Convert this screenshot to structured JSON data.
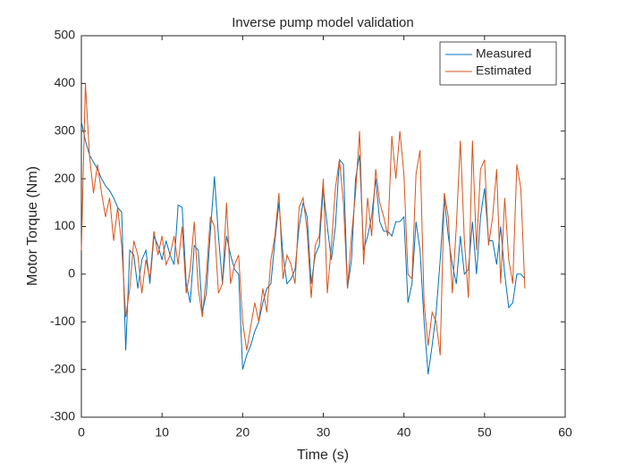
{
  "chart_data": {
    "type": "line",
    "title": "Inverse pump model validation",
    "x_label": "Time (s)",
    "y_label": "Motor Torque (Nm)",
    "x": [
      0,
      0.5,
      1,
      1.5,
      2,
      2.5,
      3,
      3.5,
      4,
      4.5,
      5,
      5.5,
      6,
      6.5,
      7,
      7.5,
      8,
      8.5,
      9,
      9.5,
      10,
      10.5,
      11,
      11.5,
      12,
      12.5,
      13,
      13.5,
      14,
      14.5,
      15,
      15.5,
      16,
      16.5,
      17,
      17.5,
      18,
      18.5,
      19,
      19.5,
      20,
      20.5,
      21,
      21.5,
      22,
      22.5,
      23,
      23.5,
      24,
      24.5,
      25,
      25.5,
      26,
      26.5,
      27,
      27.5,
      28,
      28.5,
      29,
      29.5,
      30,
      30.5,
      31,
      31.5,
      32,
      32.5,
      33,
      33.5,
      34,
      34.5,
      35,
      35.5,
      36,
      36.5,
      37,
      37.5,
      38,
      38.5,
      39,
      39.5,
      40,
      40.5,
      41,
      41.5,
      42,
      42.5,
      43,
      43.5,
      44,
      44.5,
      45,
      45.5,
      46,
      46.5,
      47,
      47.5,
      48,
      48.5,
      49,
      49.5,
      50,
      50.5,
      51,
      51.5,
      52,
      52.5,
      53,
      53.5,
      54,
      54.5,
      55
    ],
    "series": [
      {
        "name": "Measured",
        "color": "#0072BD",
        "values": [
          320,
          280,
          250,
          235,
          220,
          200,
          185,
          175,
          160,
          140,
          130,
          -160,
          50,
          40,
          -30,
          30,
          50,
          -20,
          80,
          60,
          30,
          70,
          40,
          20,
          145,
          140,
          -20,
          -60,
          60,
          50,
          -80,
          -40,
          90,
          205,
          80,
          -20,
          80,
          40,
          10,
          0,
          -200,
          -170,
          -150,
          -120,
          -100,
          -60,
          -30,
          -20,
          70,
          150,
          40,
          -20,
          -10,
          10,
          100,
          150,
          120,
          -20,
          40,
          60,
          180,
          100,
          30,
          100,
          240,
          230,
          -30,
          30,
          200,
          250,
          50,
          80,
          120,
          200,
          110,
          90,
          90,
          80,
          110,
          110,
          120,
          -60,
          -20,
          110,
          50,
          -100,
          -210,
          -150,
          -80,
          30,
          160,
          80,
          20,
          -20,
          80,
          0,
          10,
          110,
          0,
          120,
          180,
          70,
          70,
          20,
          100,
          0,
          -70,
          -60,
          0,
          0,
          -10
        ]
      },
      {
        "name": "Estimated",
        "color": "#D95319",
        "values": [
          50,
          400,
          250,
          170,
          230,
          170,
          120,
          160,
          70,
          140,
          60,
          -90,
          -30,
          70,
          40,
          -40,
          30,
          -10,
          90,
          40,
          80,
          20,
          40,
          80,
          20,
          100,
          -40,
          10,
          110,
          -30,
          -90,
          0,
          120,
          100,
          -40,
          -20,
          150,
          -20,
          20,
          40,
          -100,
          -160,
          -110,
          -60,
          -100,
          -30,
          -80,
          30,
          80,
          170,
          -10,
          40,
          20,
          -20,
          140,
          160,
          90,
          -50,
          60,
          80,
          200,
          -40,
          60,
          180,
          240,
          150,
          -30,
          80,
          170,
          300,
          20,
          160,
          80,
          220,
          150,
          120,
          80,
          290,
          200,
          300,
          210,
          0,
          -10,
          210,
          260,
          -60,
          -150,
          -80,
          -100,
          -170,
          170,
          120,
          -40,
          100,
          280,
          70,
          -50,
          280,
          50,
          220,
          240,
          60,
          120,
          220,
          -20,
          160,
          30,
          -20,
          230,
          180,
          -30
        ]
      }
    ],
    "xlim": [
      0,
      60
    ],
    "xticks": [
      0,
      10,
      20,
      30,
      40,
      50,
      60
    ],
    "ylim": [
      -300,
      500
    ],
    "yticks": [
      -300,
      -200,
      -100,
      0,
      100,
      200,
      300,
      400,
      500
    ],
    "legend": "upper right"
  }
}
